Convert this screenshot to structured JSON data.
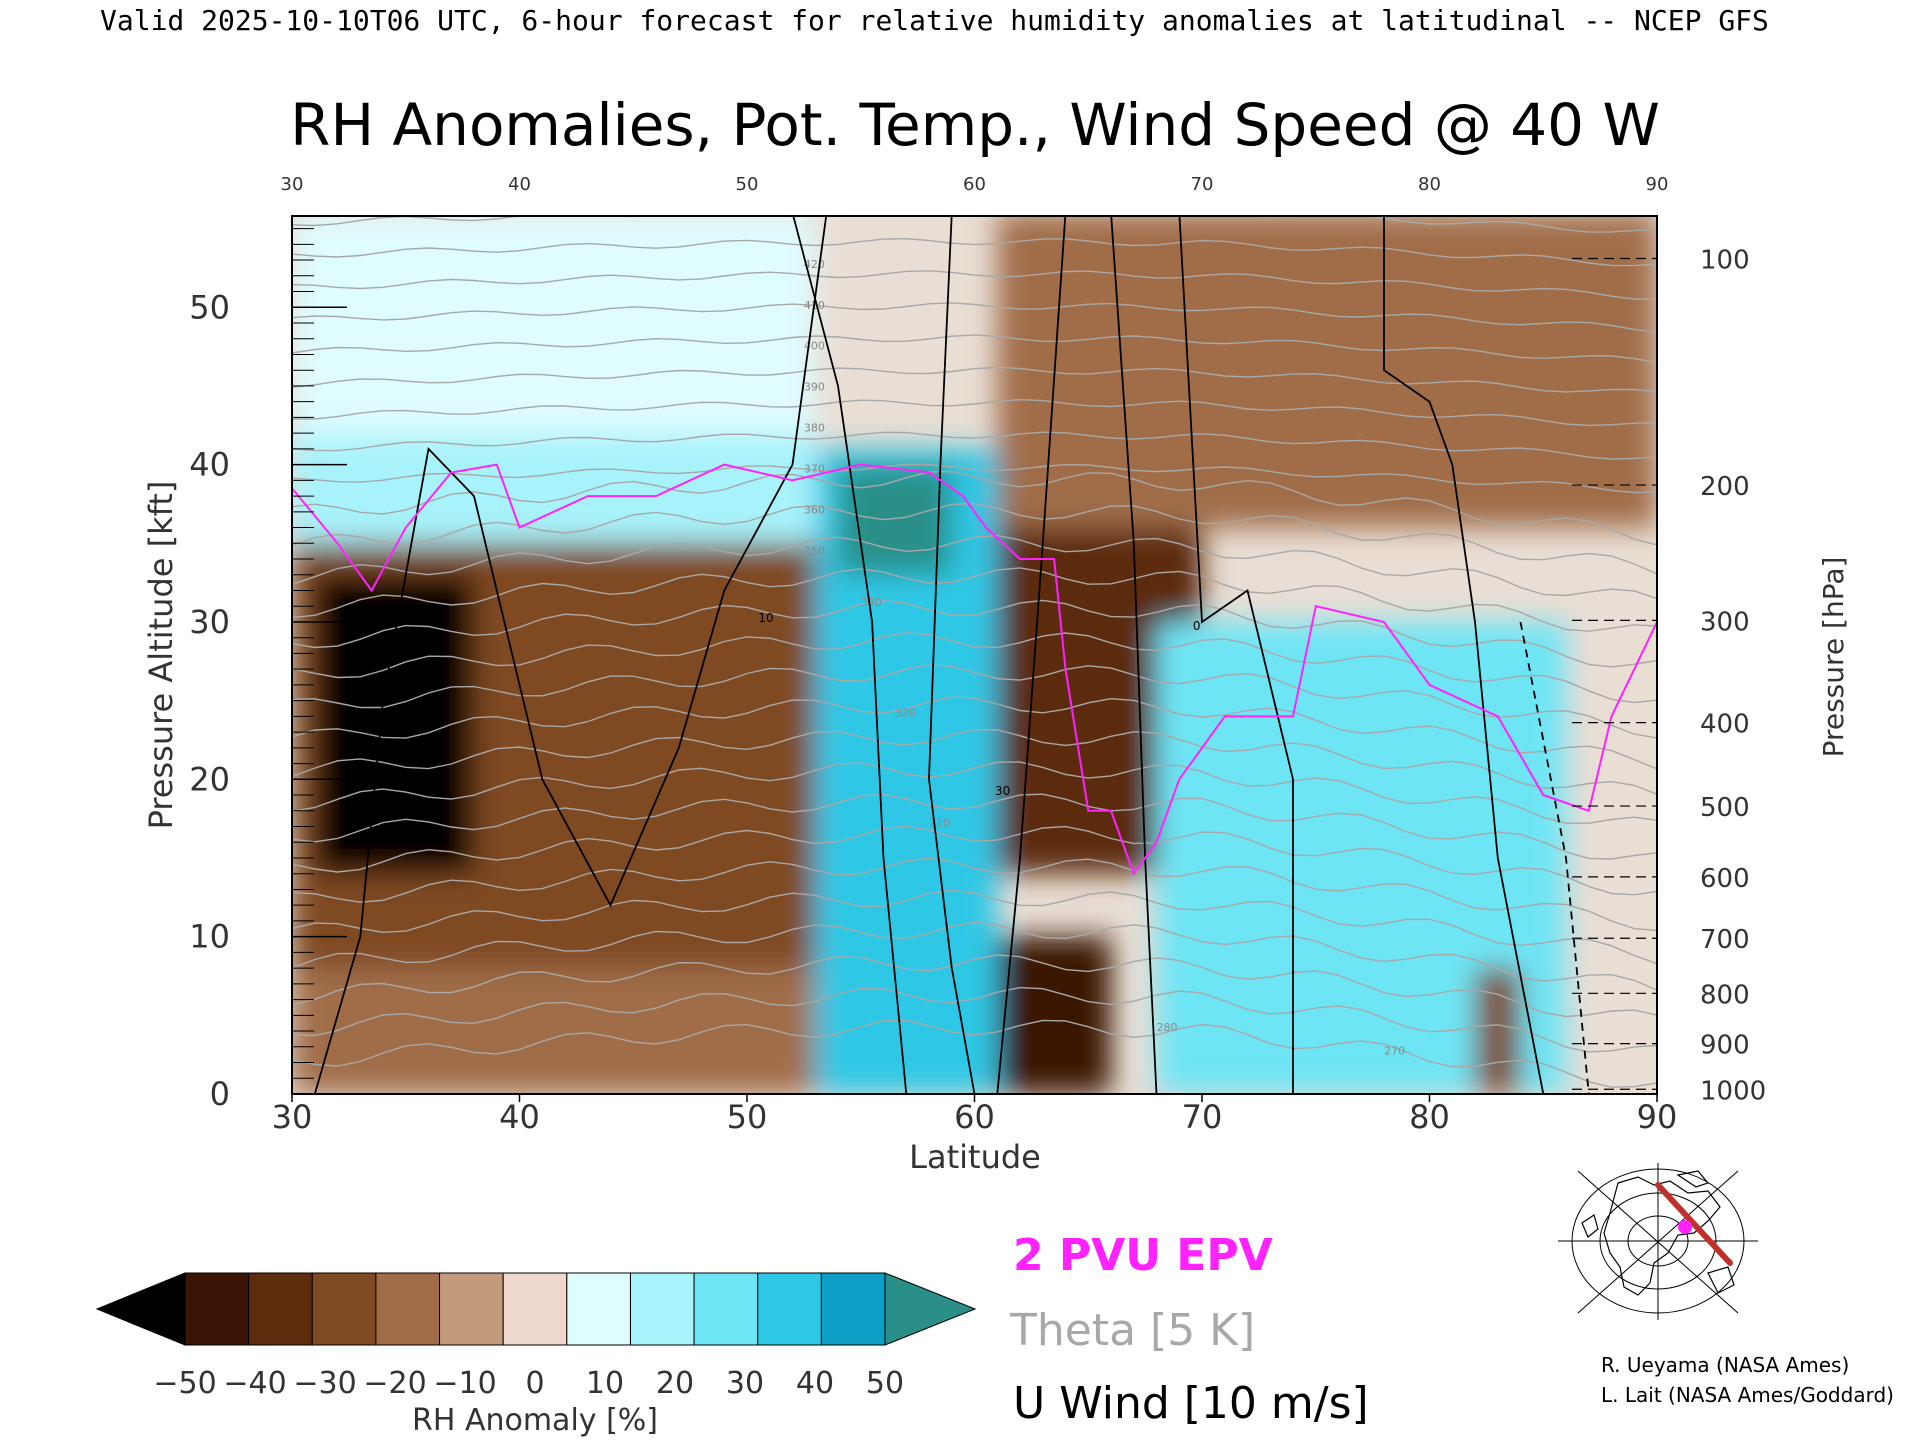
{
  "header": {
    "valid_line": "Valid 2025-10-10T06 UTC, 6-hour forecast for relative humidity anomalies at latitudinal -- NCEP GFS",
    "title": "RH Anomalies, Pot. Temp., Wind Speed @ 40 W"
  },
  "chart_data": {
    "type": "heatmap",
    "xlabel": "Latitude",
    "ylabel_left": "Pressure Altitude [kft]",
    "ylabel_right": "Pressure [hPa]",
    "xlim": [
      30,
      90
    ],
    "ylim": [
      0,
      55.8
    ],
    "x_ticks": [
      "30",
      "40",
      "50",
      "60",
      "70",
      "80",
      "90"
    ],
    "y_ticks_kft": [
      "0",
      "10",
      "20",
      "30",
      "40",
      "50"
    ],
    "pressure_ticks": [
      {
        "label": "100",
        "kft": 53.1
      },
      {
        "label": "200",
        "kft": 38.7
      },
      {
        "label": "300",
        "kft": 30.1
      },
      {
        "label": "400",
        "kft": 23.6
      },
      {
        "label": "500",
        "kft": 18.3
      },
      {
        "label": "600",
        "kft": 13.8
      },
      {
        "label": "700",
        "kft": 9.9
      },
      {
        "label": "800",
        "kft": 6.4
      },
      {
        "label": "900",
        "kft": 3.2
      },
      {
        "label": "1000",
        "kft": 0.3
      }
    ],
    "rh_anomaly_regions": [
      {
        "lat": [
          30,
          53
        ],
        "kft": [
          8,
          35
        ],
        "anomaly": -30
      },
      {
        "lat": [
          31,
          38
        ],
        "kft": [
          14,
          33
        ],
        "anomaly": -50
      },
      {
        "lat": [
          30,
          53
        ],
        "kft": [
          35,
          42
        ],
        "anomaly": 20
      },
      {
        "lat": [
          30,
          53
        ],
        "kft": [
          42,
          56
        ],
        "anomaly": 15
      },
      {
        "lat": [
          30,
          53
        ],
        "kft": [
          0,
          8
        ],
        "anomaly": -15
      },
      {
        "lat": [
          53,
          61
        ],
        "kft": [
          0,
          41
        ],
        "anomaly": 40
      },
      {
        "lat": [
          54,
          59
        ],
        "kft": [
          33,
          40
        ],
        "anomaly": 50
      },
      {
        "lat": [
          61,
          90
        ],
        "kft": [
          36,
          56
        ],
        "anomaly": -20
      },
      {
        "lat": [
          61,
          70
        ],
        "kft": [
          14,
          36
        ],
        "anomaly": -35
      },
      {
        "lat": [
          61,
          66
        ],
        "kft": [
          0,
          10
        ],
        "anomaly": -45
      },
      {
        "lat": [
          68,
          86
        ],
        "kft": [
          0,
          30
        ],
        "anomaly": 35
      },
      {
        "lat": [
          82,
          84
        ],
        "kft": [
          0,
          8
        ],
        "anomaly": -30
      }
    ],
    "theta_contour_labels": [
      "420",
      "410",
      "400",
      "390",
      "380",
      "370",
      "360",
      "350",
      "330",
      "320",
      "310",
      "280",
      "270"
    ],
    "wind_contour_labels": [
      "10",
      "0",
      "30"
    ],
    "colorbar": {
      "label": "RH Anomaly [%]",
      "tick_labels": [
        "−50",
        "−40",
        "−30",
        "−20",
        "−10",
        "0",
        "10",
        "20",
        "30",
        "40",
        "50"
      ],
      "colors": [
        "#3a1404",
        "#5c2c0c",
        "#7f4a22",
        "#a16d48",
        "#c39a7b",
        "#eed8cc",
        "#dffcff",
        "#a8f3fb",
        "#6ee5f5",
        "#2ec8e6",
        "#0c9ec4"
      ],
      "under_color": "#000000",
      "over_color": "#2a8f88"
    },
    "legend": [
      {
        "label": "2 PVU EPV",
        "color": "#ff22ff"
      },
      {
        "label": "Theta [5 K]",
        "color": "#a8a8a8"
      },
      {
        "label": "U Wind [10 m/s]",
        "color": "#000000"
      }
    ]
  },
  "inset_map": {
    "section_color": "#c0302a",
    "marker_color": "#ff22ff"
  },
  "credits": {
    "line1": "R. Ueyama (NASA Ames)",
    "line2": "L. Lait (NASA Ames/Goddard)"
  }
}
